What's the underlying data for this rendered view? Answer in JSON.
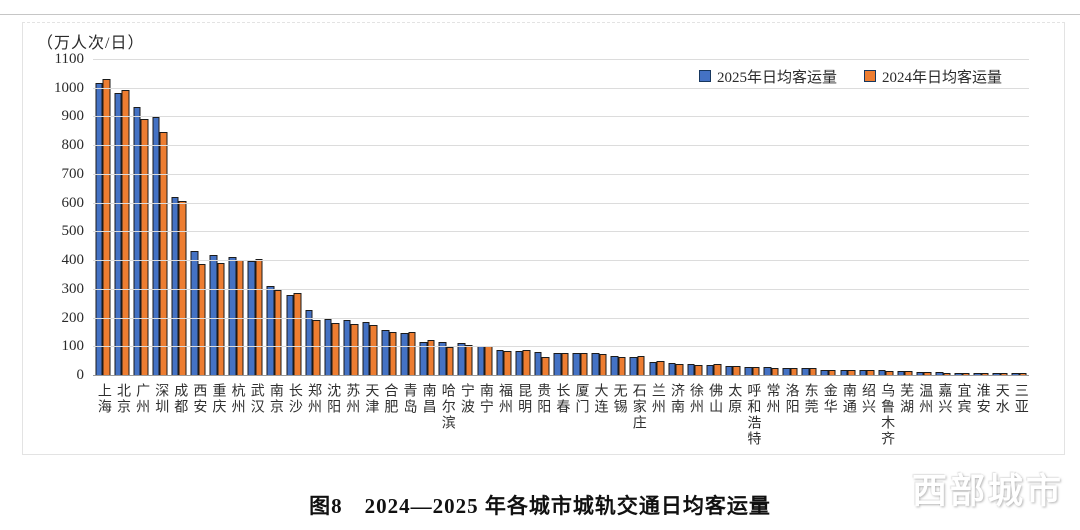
{
  "page": {
    "y_axis_unit": "（万人次/日）",
    "caption": "图8　2024—2025 年各城市城轨交通日均客运量",
    "watermark": "西部城市"
  },
  "legend": {
    "items": [
      {
        "label": "2025年日均客运量",
        "color": "#4472C4"
      },
      {
        "label": "2024年日均客运量",
        "color": "#ED7D31"
      }
    ]
  },
  "chart_data": {
    "type": "bar",
    "title": "图8 2024—2025年各城市城轨交通日均客运量",
    "xlabel": "",
    "ylabel": "（万人次/日）",
    "ylim": [
      0,
      1100
    ],
    "ytick_interval": 100,
    "grid": true,
    "legend_position": "top-right",
    "categories": [
      "上海",
      "北京",
      "广州",
      "深圳",
      "成都",
      "西安",
      "重庆",
      "杭州",
      "武汉",
      "南京",
      "长沙",
      "郑州",
      "沈阳",
      "苏州",
      "天津",
      "合肥",
      "青岛",
      "南昌",
      "哈尔滨",
      "宁波",
      "南宁",
      "福州",
      "昆明",
      "贵阳",
      "长春",
      "厦门",
      "大连",
      "无锡",
      "石家庄",
      "兰州",
      "济南",
      "徐州",
      "佛山",
      "太原",
      "呼和浩特",
      "常州",
      "洛阳",
      "东莞",
      "金华",
      "南通",
      "绍兴",
      "乌鲁木齐",
      "芜湖",
      "温州",
      "嘉兴",
      "宜宾",
      "淮安",
      "天水",
      "三亚"
    ],
    "series": [
      {
        "name": "2025年日均客运量",
        "color": "#4472C4",
        "values": [
          1018,
          983,
          933,
          899,
          618,
          430,
          416,
          412,
          398,
          310,
          278,
          226,
          196,
          192,
          186,
          156,
          146,
          116,
          115,
          111,
          102,
          87,
          84,
          79,
          76,
          76,
          75,
          65,
          61,
          44,
          42,
          37,
          35,
          32,
          29,
          27,
          25,
          24,
          19,
          18,
          17,
          16,
          14,
          12,
          9,
          8,
          7,
          5,
          4
        ]
      },
      {
        "name": "2024年日均客运量",
        "color": "#ED7D31",
        "values": [
          1032,
          991,
          890,
          847,
          606,
          387,
          390,
          401,
          405,
          297,
          286,
          193,
          181,
          178,
          174,
          148,
          149,
          121,
          97,
          103,
          100,
          85,
          86,
          64,
          75,
          76,
          73,
          63,
          65,
          47,
          40,
          35,
          37,
          31,
          27,
          26,
          24,
          23,
          18,
          17,
          17,
          15,
          13,
          11,
          8,
          8,
          7,
          5,
          3
        ]
      }
    ]
  }
}
